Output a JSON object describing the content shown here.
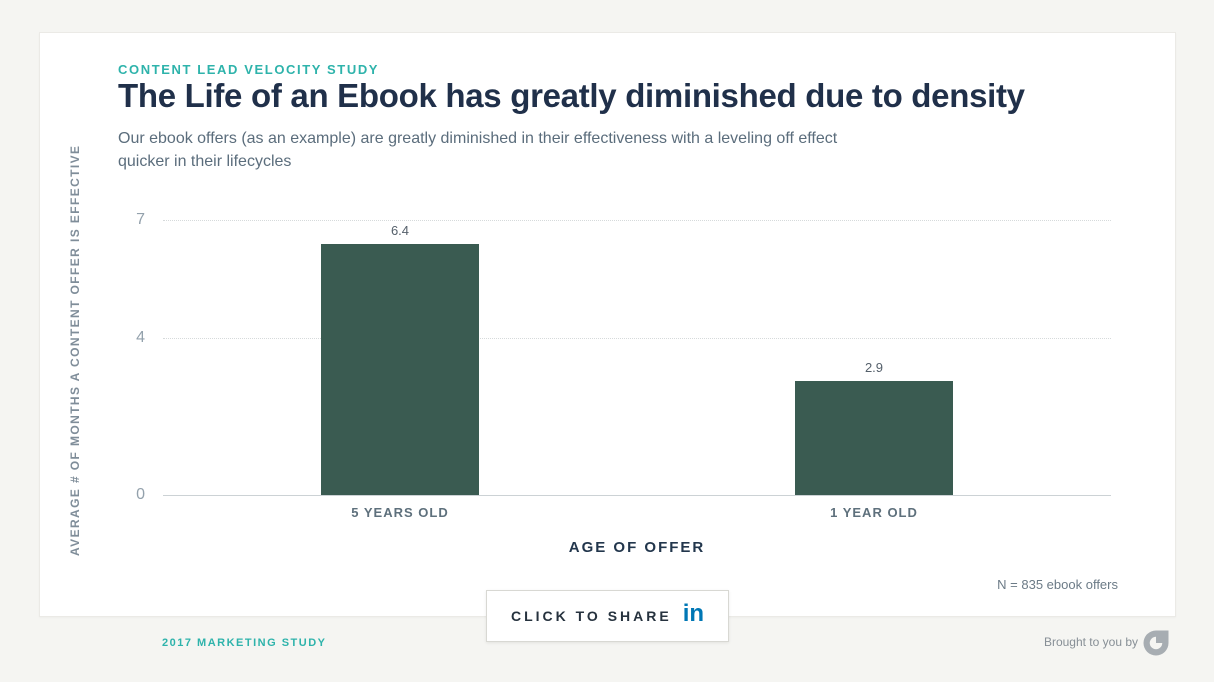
{
  "card": {
    "eyebrow": "CONTENT LEAD VELOCITY STUDY",
    "title": "The Life of an Ebook has greatly diminished due to density",
    "subtitle": "Our ebook offers (as an example) are greatly diminished in their effectiveness with a leveling off effect quicker in their lifecycles",
    "sample_note": "N = 835 ebook offers"
  },
  "chart_data": {
    "type": "bar",
    "title": "The Life of an Ebook has greatly diminished due to density",
    "categories": [
      "5 YEARS OLD",
      "1 YEAR OLD"
    ],
    "values": [
      6.4,
      2.9
    ],
    "value_labels": [
      "6.4",
      "2.9"
    ],
    "xlabel": "AGE OF OFFER",
    "ylabel": "AVERAGE # OF MONTHS A CONTENT OFFER IS EFFECTIVE",
    "yticks": [
      7,
      4,
      0
    ],
    "ylim": [
      0,
      7
    ],
    "grid": true,
    "legend": "none",
    "bar_color": "#3a5b51"
  },
  "share": {
    "label": "CLICK TO SHARE",
    "icon": "linkedin-icon",
    "icon_glyph": "in",
    "linkedin_color": "#0077b5"
  },
  "footer": {
    "left": "2017 MARKETING STUDY",
    "right": "Brought to you by"
  },
  "colors": {
    "accent_teal": "#2eb3ab",
    "title_navy": "#20304a",
    "subtitle_gray": "#5b6d7c",
    "bar_green": "#3a5b51",
    "axis_gray": "#93a1ac",
    "background": "#f5f5f2"
  }
}
